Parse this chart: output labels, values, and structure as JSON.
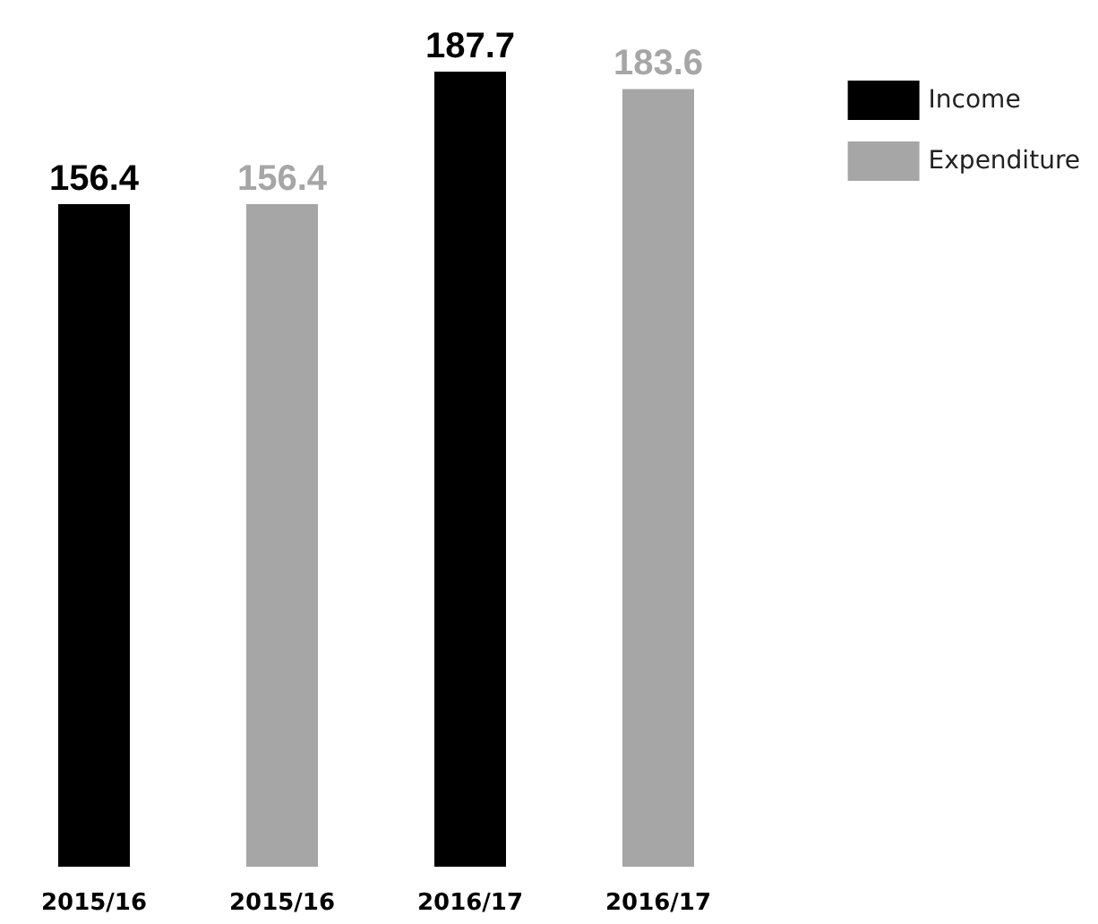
{
  "chart_data": {
    "type": "bar",
    "categories": [
      "2015/16",
      "2015/16",
      "2016/17",
      "2016/17"
    ],
    "series": [
      {
        "name": "Income",
        "color": "#000000",
        "values": [
          156.4,
          null,
          187.7,
          null
        ]
      },
      {
        "name": "Expenditure",
        "color": "#a6a6a6",
        "values": [
          null,
          156.4,
          null,
          183.6
        ]
      }
    ],
    "data_labels": true,
    "legend": "top right"
  }
}
